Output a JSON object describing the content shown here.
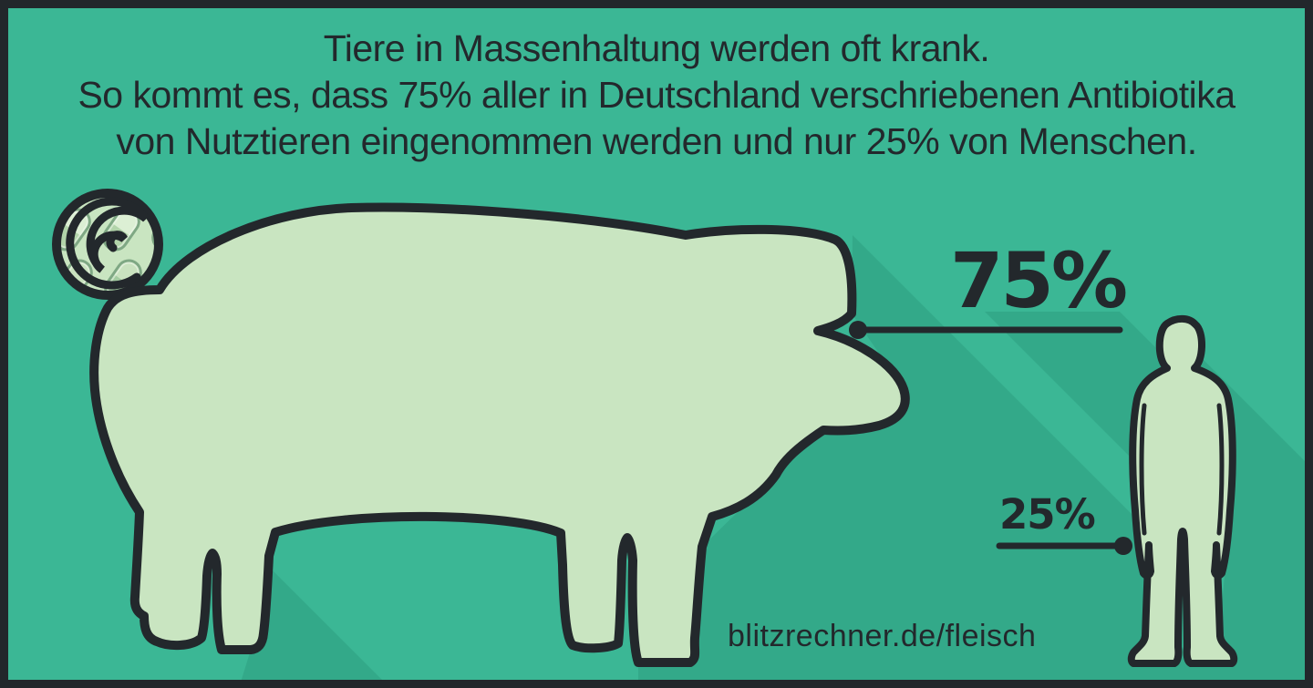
{
  "chart_data": {
    "type": "bar",
    "title": "Tiere in Massenhaltung werden oft krank. So kommt es, dass 75% aller in Deutschland verschriebenen Antibiotika von Nutztieren eingenommen werden und nur 25% von Menschen.",
    "categories": [
      "Nutztiere (Schwein-Piktogramm)",
      "Menschen (Mensch-Piktogramm)"
    ],
    "values": [
      75,
      25
    ],
    "unit": "%",
    "annotations": [
      "75%",
      "25%"
    ],
    "source": "blitzrechner.de/fleisch"
  },
  "header": {
    "line1": "Tiere in Massenhaltung werden oft krank.",
    "line2": "So kommt es, dass 75% aller in Deutschland verschriebenen Antibiotika",
    "line3": "von Nutztieren eingenommen werden und nur 25% von Menschen."
  },
  "labels": {
    "pig_pct": "75%",
    "human_pct": "25%"
  },
  "footer": {
    "url": "blitzrechner.de/fleisch"
  },
  "colors": {
    "background": "#3bb795",
    "frame": "#22272b",
    "ink": "#23282c",
    "pig_fill": "#c9e5c1",
    "shadow": "rgba(0,80,60,0.13)"
  },
  "pills": {
    "outline": "#23282c",
    "inner_highlight": "#ffffff",
    "muted_outline": "#7fa884",
    "muted_highlight": "#eef7ea",
    "colored_combos": [
      [
        "#e33b33",
        "#f7f3e7"
      ],
      [
        "#f7f3e7",
        "#29a4b7"
      ],
      [
        "#f2b626",
        "#f7f3e7"
      ],
      [
        "#e03a8d",
        "#f7f3e7"
      ],
      [
        "#e33b33",
        "#29a4b7"
      ],
      [
        "#f7f3e7",
        "#b8c72d"
      ],
      [
        "#e85f28",
        "#f2b626"
      ],
      [
        "#f7f3e7",
        "#e33b33"
      ],
      [
        "#29a4b7",
        "#f7f3e7"
      ],
      [
        "#f2b626",
        "#e85f28"
      ],
      [
        "#e33b33",
        "#e33b33"
      ],
      [
        "#b8c72d",
        "#f7f3e7"
      ],
      [
        "#f7f3e7",
        "#f2b626"
      ],
      [
        "#e85f28",
        "#f7f3e7"
      ],
      [
        "#29a4b7",
        "#e33b33"
      ],
      [
        "#f7f3e7",
        "#e03a8d"
      ],
      [
        "#e03a8d",
        "#e33b33"
      ],
      [
        "#e33b33",
        "#f2b626"
      ]
    ],
    "muted_combos": [
      [
        "#c9e2bf",
        "#a3cba0"
      ],
      [
        "#dcefd4",
        "#b2d4aa"
      ],
      [
        "#aed0a6",
        "#d5ead0"
      ]
    ],
    "human_combos": [
      [
        "#e03a8d",
        "#b8c72d"
      ],
      [
        "#e03a8d",
        "#f7f3e7"
      ],
      [
        "#b8c72d",
        "#f7f3e7"
      ],
      [
        "#f7f3e7",
        "#e03a8d"
      ],
      [
        "#b8c72d",
        "#e03a8d"
      ]
    ]
  }
}
